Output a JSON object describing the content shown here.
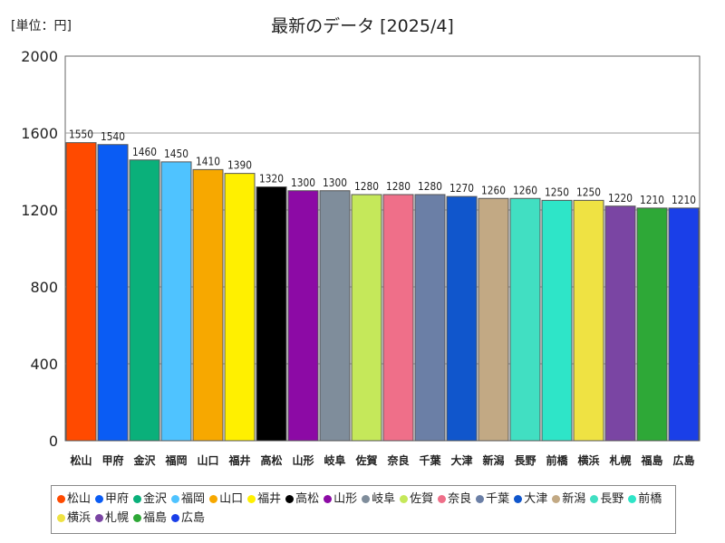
{
  "unit_label": "[単位：円]",
  "chart_data": {
    "type": "bar",
    "title": "最新のデータ [2025/4]",
    "xlabel": "",
    "ylabel": "円",
    "ylim": [
      0,
      2000
    ],
    "yticks": [
      0,
      400,
      800,
      1200,
      1600,
      2000
    ],
    "grid": true,
    "legend": "bottom",
    "categories": [
      "松山",
      "甲府",
      "金沢",
      "福岡",
      "山口",
      "福井",
      "高松",
      "山形",
      "岐阜",
      "佐賀",
      "奈良",
      "千葉",
      "大津",
      "新潟",
      "長野",
      "前橋",
      "横浜",
      "札幌",
      "福島",
      "広島"
    ],
    "values": [
      1550,
      1540,
      1460,
      1450,
      1410,
      1390,
      1320,
      1300,
      1300,
      1280,
      1280,
      1280,
      1270,
      1260,
      1260,
      1250,
      1250,
      1220,
      1210,
      1210
    ],
    "colors": [
      "#ff4a00",
      "#0a5cf4",
      "#0ab07a",
      "#4fc3ff",
      "#f7a800",
      "#fff000",
      "#000000",
      "#8c0aa5",
      "#7f8d9b",
      "#c5e85a",
      "#ef6f89",
      "#6b7fa6",
      "#1056cc",
      "#c2a984",
      "#41dfc2",
      "#2ee5c8",
      "#efe243",
      "#7a45a3",
      "#2ea837",
      "#1a3fe8"
    ]
  }
}
